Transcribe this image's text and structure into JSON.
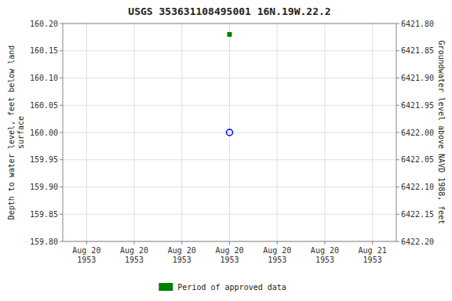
{
  "chart_data": {
    "type": "scatter",
    "title": "USGS 353631108495001 16N.19W.22.2",
    "y_label": "Depth to water level, feet below land\nsurface",
    "y2_label": "Groundwater level above NAVD 1988, feet",
    "categories": [
      "Aug 20\n1953",
      "Aug 20\n1953",
      "Aug 20\n1953",
      "Aug 20\n1953",
      "Aug 20\n1953",
      "Aug 20\n1953",
      "Aug 21\n1953"
    ],
    "series": [
      {
        "color": "#0000ff",
        "marker": "circle-open",
        "values": [
          null,
          null,
          null,
          160.0,
          null,
          null,
          null
        ]
      },
      {
        "name": "Period of approved data",
        "color": "#008000",
        "marker": "square",
        "values": [
          null,
          null,
          null,
          160.18,
          null,
          null,
          null
        ]
      }
    ],
    "ylim": [
      159.8,
      160.2
    ],
    "yticks": [
      {
        "value": 159.8,
        "label": "159.80"
      },
      {
        "value": 159.85,
        "label": "159.85"
      },
      {
        "value": 159.9,
        "label": "159.90"
      },
      {
        "value": 159.95,
        "label": "159.95"
      },
      {
        "value": 160.0,
        "label": "160.00"
      },
      {
        "value": 160.05,
        "label": "160.05"
      },
      {
        "value": 160.1,
        "label": "160.10"
      },
      {
        "value": 160.15,
        "label": "160.15"
      },
      {
        "value": 160.2,
        "label": "160.20"
      }
    ],
    "y2lim": [
      6422.2,
      6421.8
    ],
    "y2ticks": [
      {
        "value": 6422.2,
        "label": "6422.20"
      },
      {
        "value": 6422.15,
        "label": "6422.15"
      },
      {
        "value": 6422.1,
        "label": "6422.10"
      },
      {
        "value": 6422.05,
        "label": "6422.05"
      },
      {
        "value": 6422.0,
        "label": "6422.00"
      },
      {
        "value": 6421.95,
        "label": "6421.95"
      },
      {
        "value": 6421.9,
        "label": "6421.90"
      },
      {
        "value": 6421.85,
        "label": "6421.85"
      },
      {
        "value": 6421.8,
        "label": "6421.80"
      }
    ],
    "grid": true,
    "legend": "bottom"
  }
}
